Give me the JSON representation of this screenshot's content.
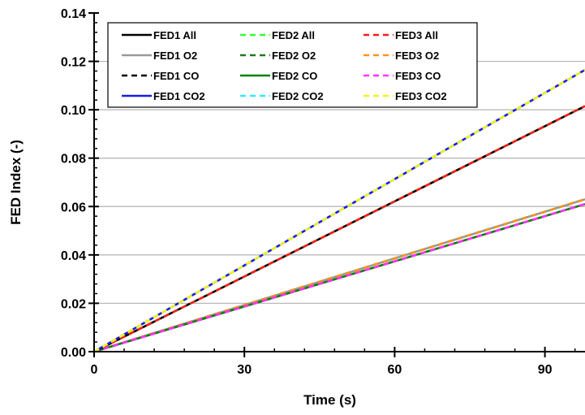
{
  "chart_data": {
    "type": "line",
    "xlabel": "Time (s)",
    "ylabel": "FED Index (-)",
    "xlim": [
      0,
      98
    ],
    "ylim": [
      0,
      0.14
    ],
    "x_ticks": [
      0,
      30,
      60,
      90
    ],
    "x_tick_labels": [
      "0",
      "30",
      "60",
      "90"
    ],
    "y_ticks": [
      0,
      0.02,
      0.04,
      0.06,
      0.08,
      0.1,
      0.12,
      0.14
    ],
    "y_tick_labels": [
      "0.00",
      "0.02",
      "0.04",
      "0.06",
      "0.08",
      "0.10",
      "0.12",
      "0.14"
    ],
    "grid": "horizontal",
    "legend_position": "top-left",
    "series": [
      {
        "name": "FED1 All",
        "color": "#000000",
        "dash": "solid",
        "x": [
          0,
          98
        ],
        "y": [
          0,
          0.1015
        ]
      },
      {
        "name": "FED2 All",
        "color": "#33FF33",
        "dash": "dashed",
        "x": [
          0,
          98
        ],
        "y": [
          0,
          0.1015
        ]
      },
      {
        "name": "FED3 All",
        "color": "#FF1A1A",
        "dash": "dashed",
        "x": [
          0,
          98
        ],
        "y": [
          0,
          0.1015
        ]
      },
      {
        "name": "FED1 O2",
        "color": "#999999",
        "dash": "solid",
        "x": [
          0,
          98
        ],
        "y": [
          0,
          0.063
        ]
      },
      {
        "name": "FED2 O2",
        "color": "#1E7A1E",
        "dash": "dashed",
        "x": [
          0,
          98
        ],
        "y": [
          0,
          0.063
        ]
      },
      {
        "name": "FED3 O2",
        "color": "#F7941D",
        "dash": "dashed",
        "x": [
          0,
          98
        ],
        "y": [
          0,
          0.063
        ]
      },
      {
        "name": "FED1 CO",
        "color": "#000000",
        "dash": "dashed",
        "x": [
          0,
          98
        ],
        "y": [
          0,
          0.061
        ]
      },
      {
        "name": "FED2 CO",
        "color": "#008000",
        "dash": "solid",
        "x": [
          0,
          98
        ],
        "y": [
          0,
          0.061
        ]
      },
      {
        "name": "FED3 CO",
        "color": "#FF33FF",
        "dash": "dashed",
        "x": [
          0,
          98
        ],
        "y": [
          0,
          0.061
        ]
      },
      {
        "name": "FED1 CO2",
        "color": "#1A1AE6",
        "dash": "solid",
        "x": [
          0,
          98
        ],
        "y": [
          0,
          0.1165
        ]
      },
      {
        "name": "FED2 CO2",
        "color": "#33E6FF",
        "dash": "dashed",
        "x": [
          0,
          98
        ],
        "y": [
          0,
          0.1165
        ]
      },
      {
        "name": "FED3 CO2",
        "color": "#F2F21A",
        "dash": "dashed",
        "x": [
          0,
          98
        ],
        "y": [
          0,
          0.1165
        ]
      }
    ]
  }
}
